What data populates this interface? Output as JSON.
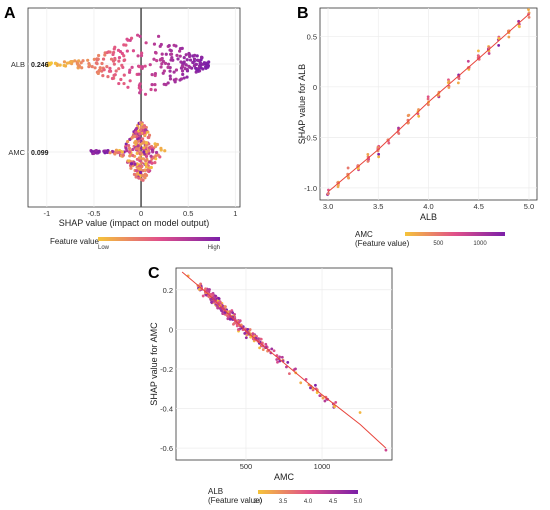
{
  "colors": {
    "low": "#f5c43a",
    "mid": "#e0508a",
    "high": "#7b1fa8",
    "fit_line": "#e8453c",
    "grid": "#ececec",
    "panel_bg": "#ffffff"
  },
  "chart_data": [
    {
      "panel": "A",
      "type": "scatter",
      "subtype": "shap-beeswarm",
      "title": "",
      "xlabel": "SHAP value (impact on model output)",
      "ylabel": "",
      "xlim": [
        -1.2,
        1.05
      ],
      "xticks": [
        "-1",
        "-0.5",
        "0",
        "0.5",
        "1"
      ],
      "grid": true,
      "features": [
        {
          "name": "ALB",
          "mean_abs_shap": "0.246",
          "shap_min": -1.02,
          "shap_max": 0.72
        },
        {
          "name": "AMC",
          "mean_abs_shap": "0.099",
          "shap_min": -0.6,
          "shap_max": 0.27
        }
      ],
      "legend": {
        "title": "Feature value",
        "low_label": "Low",
        "high_label": "High",
        "placement": "bottom"
      }
    },
    {
      "panel": "B",
      "type": "scatter",
      "title": "",
      "xlabel": "ALB",
      "ylabel": "SHAP value for ALB",
      "xlim": [
        2.92,
        5.08
      ],
      "ylim": [
        -1.12,
        0.78
      ],
      "xticks": [
        "3.0",
        "3.5",
        "4.0",
        "4.5",
        "5.0"
      ],
      "yticks": [
        "-1.0",
        "-0.5",
        "0",
        "0.5"
      ],
      "grid": true,
      "fit_line": [
        [
          3.0,
          -1.04
        ],
        [
          3.5,
          -0.62
        ],
        [
          4.0,
          -0.15
        ],
        [
          4.5,
          0.28
        ],
        [
          5.0,
          0.72
        ]
      ],
      "points_x_range": [
        3.0,
        5.0
      ],
      "color_feature": "AMC",
      "legend": {
        "title_line1": "AMC",
        "title_line2": "(Feature value)",
        "ticks": [
          "500",
          "1000"
        ],
        "range": [
          100,
          1300
        ],
        "placement": "bottom"
      }
    },
    {
      "panel": "C",
      "type": "scatter",
      "title": "",
      "xlabel": "AMC",
      "ylabel": "SHAP value for AMC",
      "xlim": [
        40,
        1460
      ],
      "ylim": [
        -0.66,
        0.31
      ],
      "xticks": [
        "500",
        "1000"
      ],
      "yticks": [
        "0.2",
        "0",
        "-0.2",
        "-0.4",
        "-0.6"
      ],
      "grid": true,
      "fit_line": [
        [
          80,
          0.29
        ],
        [
          250,
          0.18
        ],
        [
          500,
          -0.01
        ],
        [
          750,
          -0.17
        ],
        [
          1000,
          -0.33
        ],
        [
          1250,
          -0.48
        ],
        [
          1420,
          -0.6
        ]
      ],
      "points_x_range": [
        80,
        1420
      ],
      "color_feature": "ALB",
      "legend": {
        "title_line1": "ALB",
        "title_line2": "(Feature value)",
        "ticks": [
          "3.0",
          "3.5",
          "4.0",
          "4.5",
          "5.0"
        ],
        "range": [
          3.0,
          5.0
        ],
        "placement": "bottom"
      }
    }
  ]
}
